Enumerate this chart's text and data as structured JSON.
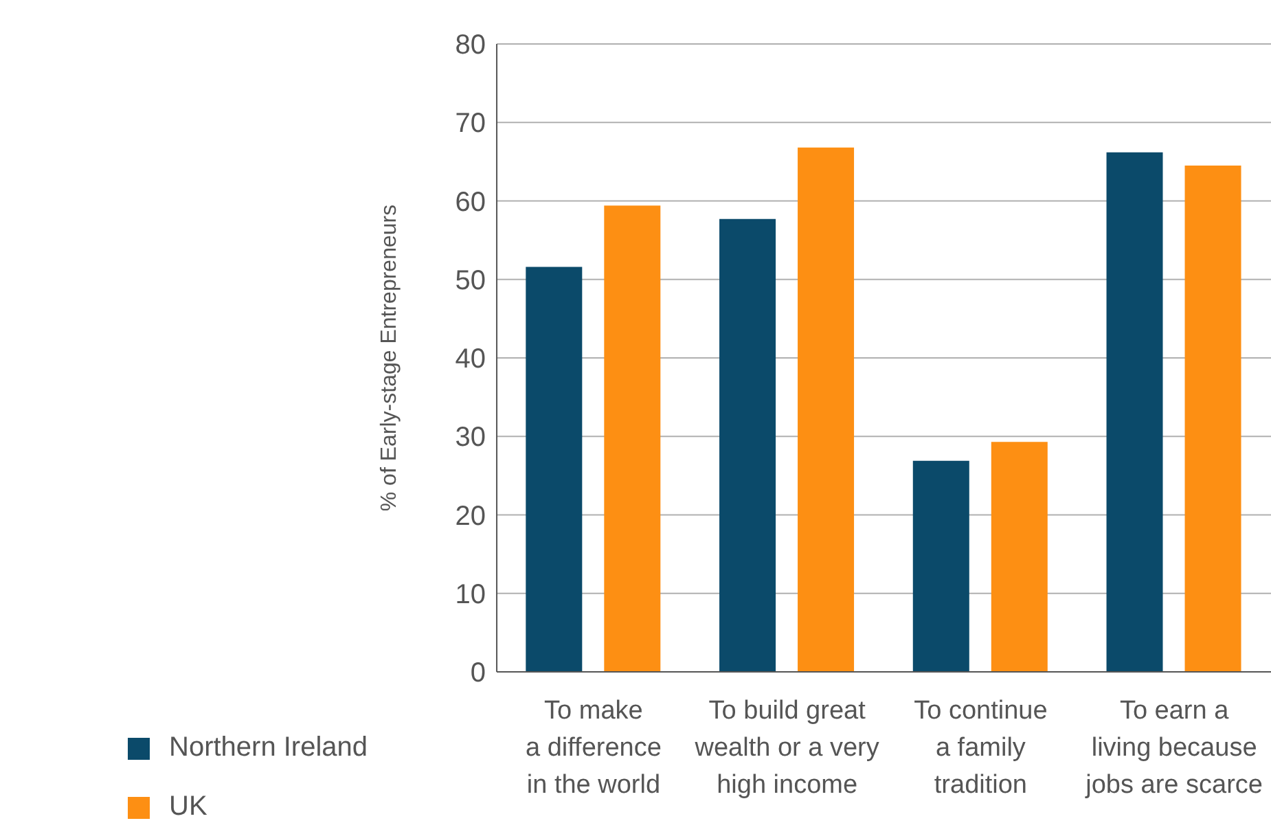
{
  "chart_data": {
    "type": "bar",
    "ylabel": "% of Early-stage Entrepreneurs",
    "categories": [
      "To make\na difference\nin the world",
      "To build great\nwealth or a very\nhigh income",
      "To continue\na family\ntradition",
      "To earn a\nliving because\njobs are scarce"
    ],
    "series": [
      {
        "name": "Northern Ireland",
        "color": "#0b4a6a",
        "values": [
          51.6,
          57.7,
          26.9,
          66.2
        ]
      },
      {
        "name": "UK",
        "color": "#fd8f13",
        "values": [
          59.4,
          66.8,
          29.3,
          64.5
        ]
      }
    ],
    "ylim": [
      0,
      80
    ],
    "yticks": [
      0,
      10,
      20,
      30,
      40,
      50,
      60,
      70,
      80
    ],
    "grid": "y",
    "legend": "bottom left"
  }
}
